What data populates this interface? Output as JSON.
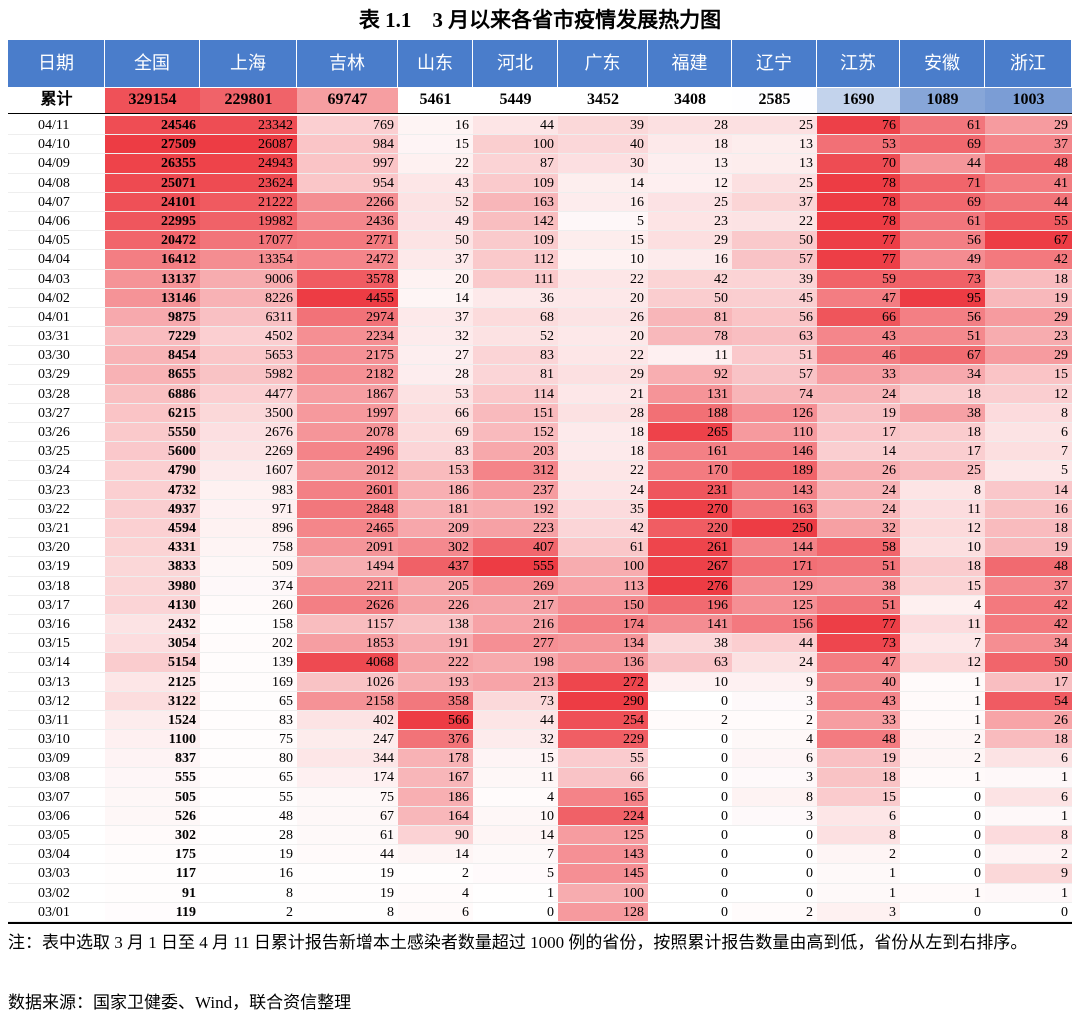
{
  "title": "表 1.1　3 月以来各省市疫情发展热力图",
  "columns": [
    "日期",
    "全国",
    "上海",
    "吉林",
    "山东",
    "河北",
    "广东",
    "福建",
    "辽宁",
    "江苏",
    "安徽",
    "浙江"
  ],
  "total": [
    "累计",
    329154,
    229801,
    69747,
    5461,
    5449,
    3452,
    3408,
    2585,
    1690,
    1089,
    1003
  ],
  "rows": [
    [
      "04/11",
      24546,
      23342,
      769,
      16,
      44,
      39,
      28,
      25,
      76,
      61,
      29
    ],
    [
      "04/10",
      27509,
      26087,
      984,
      15,
      100,
      40,
      18,
      13,
      53,
      69,
      37
    ],
    [
      "04/09",
      26355,
      24943,
      997,
      22,
      87,
      30,
      13,
      13,
      70,
      44,
      48
    ],
    [
      "04/08",
      25071,
      23624,
      954,
      43,
      109,
      14,
      12,
      25,
      78,
      71,
      41
    ],
    [
      "04/07",
      24101,
      21222,
      2266,
      52,
      163,
      16,
      25,
      37,
      78,
      69,
      44
    ],
    [
      "04/06",
      22995,
      19982,
      2436,
      49,
      142,
      5,
      23,
      22,
      78,
      61,
      55
    ],
    [
      "04/05",
      20472,
      17077,
      2771,
      50,
      109,
      15,
      29,
      50,
      77,
      56,
      67
    ],
    [
      "04/04",
      16412,
      13354,
      2472,
      37,
      112,
      10,
      16,
      57,
      77,
      49,
      42
    ],
    [
      "04/03",
      13137,
      9006,
      3578,
      20,
      111,
      22,
      42,
      39,
      59,
      73,
      18
    ],
    [
      "04/02",
      13146,
      8226,
      4455,
      14,
      36,
      20,
      50,
      45,
      47,
      95,
      19
    ],
    [
      "04/01",
      9875,
      6311,
      2974,
      37,
      68,
      26,
      81,
      56,
      66,
      56,
      29
    ],
    [
      "03/31",
      7229,
      4502,
      2234,
      32,
      52,
      20,
      78,
      63,
      43,
      51,
      23
    ],
    [
      "03/30",
      8454,
      5653,
      2175,
      27,
      83,
      22,
      11,
      51,
      46,
      67,
      29
    ],
    [
      "03/29",
      8655,
      5982,
      2182,
      28,
      81,
      29,
      92,
      57,
      33,
      34,
      15
    ],
    [
      "03/28",
      6886,
      4477,
      1867,
      53,
      114,
      21,
      131,
      74,
      24,
      18,
      12
    ],
    [
      "03/27",
      6215,
      3500,
      1997,
      66,
      151,
      28,
      188,
      126,
      19,
      38,
      8
    ],
    [
      "03/26",
      5550,
      2676,
      2078,
      69,
      152,
      18,
      265,
      110,
      17,
      18,
      6
    ],
    [
      "03/25",
      5600,
      2269,
      2496,
      83,
      203,
      18,
      161,
      146,
      14,
      17,
      7
    ],
    [
      "03/24",
      4790,
      1607,
      2012,
      153,
      312,
      22,
      170,
      189,
      26,
      25,
      5
    ],
    [
      "03/23",
      4732,
      983,
      2601,
      186,
      237,
      24,
      231,
      143,
      24,
      8,
      14
    ],
    [
      "03/22",
      4937,
      971,
      2848,
      181,
      192,
      35,
      270,
      163,
      24,
      11,
      16
    ],
    [
      "03/21",
      4594,
      896,
      2465,
      209,
      223,
      42,
      220,
      250,
      32,
      12,
      18
    ],
    [
      "03/20",
      4331,
      758,
      2091,
      302,
      407,
      61,
      261,
      144,
      58,
      10,
      19
    ],
    [
      "03/19",
      3833,
      509,
      1494,
      437,
      555,
      100,
      267,
      171,
      51,
      18,
      48
    ],
    [
      "03/18",
      3980,
      374,
      2211,
      205,
      269,
      113,
      276,
      129,
      38,
      15,
      37
    ],
    [
      "03/17",
      4130,
      260,
      2626,
      226,
      217,
      150,
      196,
      125,
      51,
      4,
      42
    ],
    [
      "03/16",
      2432,
      158,
      1157,
      138,
      216,
      174,
      141,
      156,
      77,
      11,
      42
    ],
    [
      "03/15",
      3054,
      202,
      1853,
      191,
      277,
      134,
      38,
      44,
      73,
      7,
      34
    ],
    [
      "03/14",
      5154,
      139,
      4068,
      222,
      198,
      136,
      63,
      24,
      47,
      12,
      50
    ],
    [
      "03/13",
      2125,
      169,
      1026,
      193,
      213,
      272,
      10,
      9,
      40,
      1,
      17
    ],
    [
      "03/12",
      3122,
      65,
      2158,
      358,
      73,
      290,
      0,
      3,
      43,
      1,
      54
    ],
    [
      "03/11",
      1524,
      83,
      402,
      566,
      44,
      254,
      2,
      2,
      33,
      1,
      26
    ],
    [
      "03/10",
      1100,
      75,
      247,
      376,
      32,
      229,
      0,
      4,
      48,
      2,
      18
    ],
    [
      "03/09",
      837,
      80,
      344,
      178,
      15,
      55,
      0,
      6,
      19,
      2,
      6
    ],
    [
      "03/08",
      555,
      65,
      174,
      167,
      11,
      66,
      0,
      3,
      18,
      1,
      1
    ],
    [
      "03/07",
      505,
      55,
      75,
      186,
      4,
      165,
      0,
      8,
      15,
      0,
      6
    ],
    [
      "03/06",
      526,
      48,
      67,
      164,
      10,
      224,
      0,
      3,
      6,
      0,
      1
    ],
    [
      "03/05",
      302,
      28,
      61,
      90,
      14,
      125,
      0,
      0,
      8,
      0,
      8
    ],
    [
      "03/04",
      175,
      19,
      44,
      14,
      7,
      143,
      0,
      0,
      2,
      0,
      2
    ],
    [
      "03/03",
      117,
      16,
      19,
      2,
      5,
      145,
      0,
      0,
      1,
      0,
      9
    ],
    [
      "03/02",
      91,
      8,
      19,
      4,
      1,
      100,
      0,
      0,
      1,
      1,
      1
    ],
    [
      "03/01",
      119,
      2,
      8,
      6,
      0,
      128,
      0,
      2,
      3,
      0,
      0
    ]
  ],
  "note": "注：表中选取 3 月 1 日至 4 月 11 日累计报告新增本土感染者数量超过 1000 例的省份，按照累计报告数量由高到低，省份从左到右排序。",
  "source": "数据来源：国家卫健委、Wind，联合资信整理"
}
